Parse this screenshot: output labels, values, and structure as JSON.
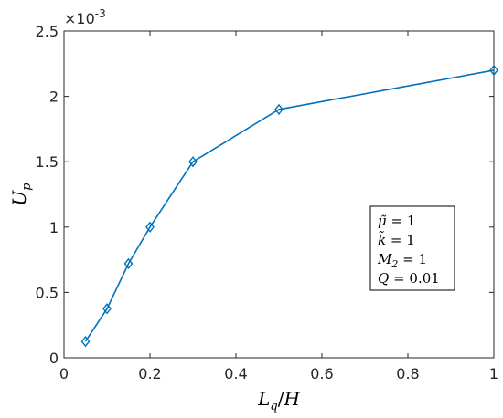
{
  "chart_data": {
    "type": "line",
    "x": [
      0.05,
      0.1,
      0.15,
      0.2,
      0.3,
      0.5,
      1.0
    ],
    "series": [
      {
        "values": [
          0.125,
          0.375,
          0.72,
          1.0,
          1.5,
          1.9,
          2.2
        ],
        "color": "#0072BD",
        "marker": "diamond"
      }
    ],
    "xlabel": "L_q/H",
    "ylabel": "U_p",
    "xlim": [
      0,
      1
    ],
    "ylim": [
      0,
      2.5
    ],
    "x_ticks": [
      "0",
      "0.2",
      "0.4",
      "0.6",
      "0.8",
      "1"
    ],
    "y_ticks": [
      "0",
      "0.5",
      "1",
      "1.5",
      "2",
      "2.5"
    ],
    "y_scale_exponent_label": "×10",
    "y_scale_exponent": "-3",
    "grid": false,
    "annotation": {
      "lines": [
        {
          "sym": "μ̃",
          "eq": " = 1"
        },
        {
          "sym": "k̃",
          "eq": " = 1"
        },
        {
          "sym": "M",
          "sub": "2",
          "eq": " = 1"
        },
        {
          "sym": "Q",
          "eq": " = 0.01"
        }
      ],
      "placement": "right-center"
    }
  }
}
